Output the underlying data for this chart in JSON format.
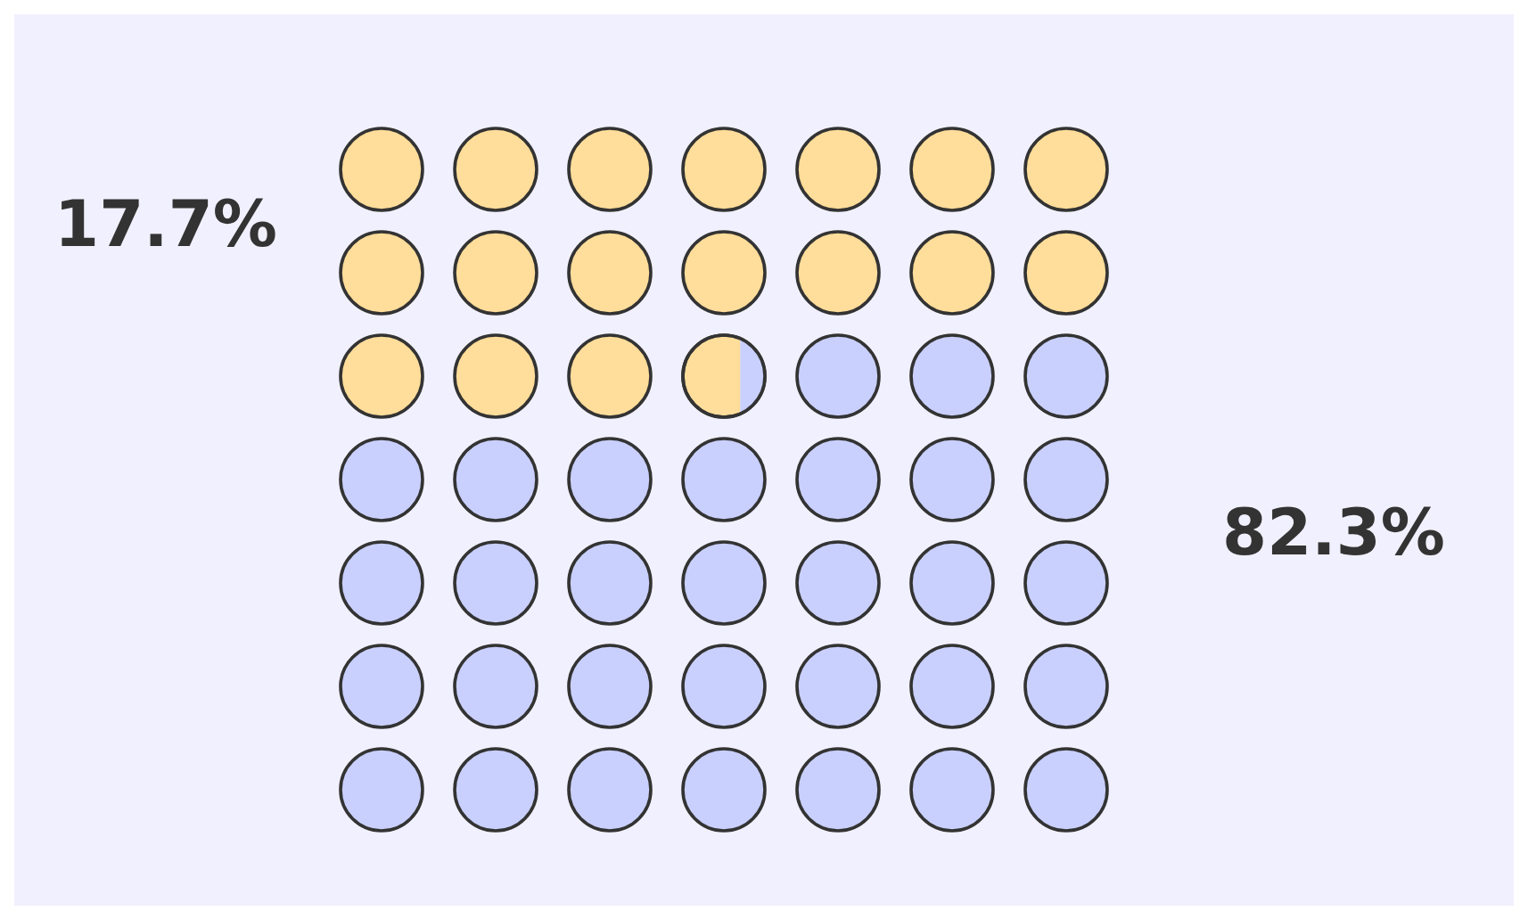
{
  "chart_data": {
    "type": "other",
    "categories": [
      null,
      null
    ],
    "values": [
      17.7,
      82.3
    ],
    "value_labels": [
      "17.7%",
      "82.3%"
    ],
    "colors": [
      "#ffdd9a",
      "#c9d0fd"
    ]
  }
}
